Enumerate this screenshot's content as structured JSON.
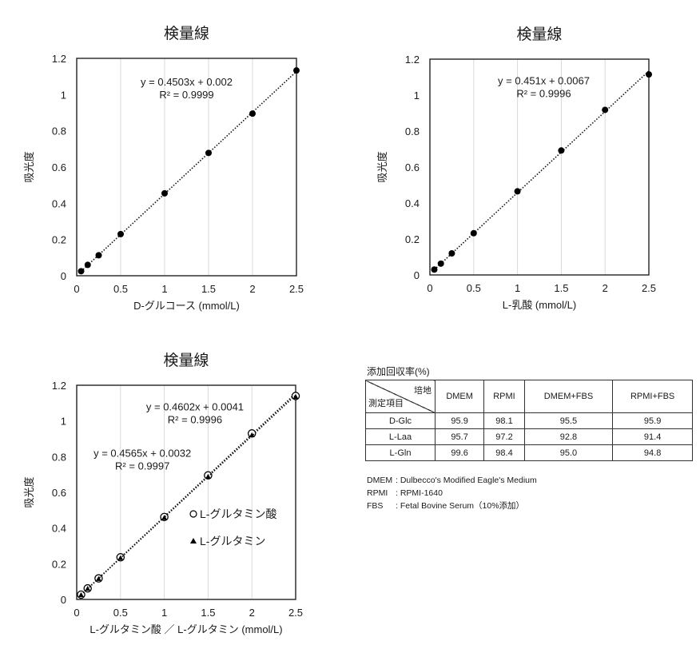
{
  "chart_data": [
    {
      "type": "scatter",
      "title": "検量線",
      "xlabel": "D-グルコース (mmol/L)",
      "ylabel": "吸光度",
      "xlim": [
        0,
        2.5
      ],
      "ylim": [
        0,
        1.2
      ],
      "xticks": [
        "0",
        "0.5",
        "1",
        "1.5",
        "2",
        "2.5"
      ],
      "yticks": [
        "0",
        "0.2",
        "0.4",
        "0.6",
        "0.8",
        "1",
        "1.2"
      ],
      "grid": "vertical",
      "series": [
        {
          "marker": "dot",
          "x": [
            0.05,
            0.125,
            0.25,
            0.5,
            1.0,
            1.5,
            2.0,
            2.5
          ],
          "y": [
            0.025,
            0.06,
            0.113,
            0.23,
            0.455,
            0.678,
            0.895,
            1.133
          ],
          "trendline": [
            0.4503,
            0.002
          ]
        }
      ],
      "annotations": [
        {
          "lines": [
            "y = 0.4503x + 0.002",
            "R² = 0.9999"
          ],
          "x": 1.25,
          "y": 1.05
        }
      ]
    },
    {
      "type": "scatter",
      "title": "検量線",
      "xlabel": "L-乳酸 (mmol/L)",
      "ylabel": "吸光度",
      "xlim": [
        0,
        2.5
      ],
      "ylim": [
        0,
        1.2
      ],
      "xticks": [
        "0",
        "0.5",
        "1",
        "1.5",
        "2",
        "2.5"
      ],
      "yticks": [
        "0",
        "0.2",
        "0.4",
        "0.6",
        "0.8",
        "1",
        "1.2"
      ],
      "grid": "vertical",
      "series": [
        {
          "marker": "dot",
          "x": [
            0.05,
            0.125,
            0.25,
            0.5,
            1.0,
            1.5,
            2.0,
            2.5
          ],
          "y": [
            0.03,
            0.063,
            0.12,
            0.232,
            0.465,
            0.692,
            0.918,
            1.115
          ],
          "trendline": [
            0.451,
            0.0067
          ]
        }
      ],
      "annotations": [
        {
          "lines": [
            "y = 0.451x + 0.0067",
            "R² = 0.9996"
          ],
          "x": 1.3,
          "y": 1.06
        }
      ]
    },
    {
      "type": "scatter",
      "title": "検量線",
      "xlabel": "L-グルタミン酸 ／ L-グルタミン (mmol/L)",
      "ylabel": "吸光度",
      "xlim": [
        0,
        2.5
      ],
      "ylim": [
        0,
        1.2
      ],
      "xticks": [
        "0",
        "0.5",
        "1",
        "1.5",
        "2",
        "2.5"
      ],
      "yticks": [
        "0",
        "0.2",
        "0.4",
        "0.6",
        "0.8",
        "1",
        "1.2"
      ],
      "grid": "vertical",
      "series": [
        {
          "name": "L-グルタミン酸",
          "marker": "circle",
          "x": [
            0.05,
            0.125,
            0.25,
            0.5,
            1.0,
            1.5,
            2.0,
            2.5
          ],
          "y": [
            0.027,
            0.062,
            0.118,
            0.236,
            0.462,
            0.695,
            0.93,
            1.14
          ],
          "trendline": [
            0.4602,
            0.0041
          ]
        },
        {
          "name": "L-グルタミン",
          "marker": "triangle",
          "x": [
            0.05,
            0.125,
            0.25,
            0.5,
            1.0,
            1.5,
            2.0,
            2.5
          ],
          "y": [
            0.025,
            0.06,
            0.115,
            0.232,
            0.458,
            0.688,
            0.92,
            1.135
          ],
          "trendline": [
            0.4565,
            0.0032
          ]
        }
      ],
      "annotations": [
        {
          "lines": [
            "y = 0.4602x + 0.0041",
            "R² = 0.9996"
          ],
          "x": 1.35,
          "y": 1.06
        },
        {
          "lines": [
            "y = 0.4565x + 0.0032",
            "R² = 0.9997"
          ],
          "x": 0.75,
          "y": 0.8
        }
      ],
      "legend": {
        "placement": "right"
      }
    }
  ],
  "recovery_table": {
    "caption": "添加回収率(%)",
    "corner_top": "培地",
    "corner_bottom": "測定項目",
    "columns": [
      "DMEM",
      "RPMI",
      "DMEM+FBS",
      "RPMI+FBS"
    ],
    "rows": [
      {
        "label": "D-Glc",
        "values": [
          "95.9",
          "98.1",
          "95.5",
          "95.9"
        ]
      },
      {
        "label": "L-Laa",
        "values": [
          "95.7",
          "97.2",
          "92.8",
          "91.4"
        ]
      },
      {
        "label": "L-Gln",
        "values": [
          "99.6",
          "98.4",
          "95.0",
          "94.8"
        ]
      }
    ],
    "notes": [
      {
        "key": "DMEM",
        "text": ": Dulbecco's Modified Eagle's Medium"
      },
      {
        "key": "RPMI",
        "text": ": RPMI-1640"
      },
      {
        "key": "FBS",
        "text": ": Fetal Bovine Serum（10%添加）"
      }
    ]
  }
}
